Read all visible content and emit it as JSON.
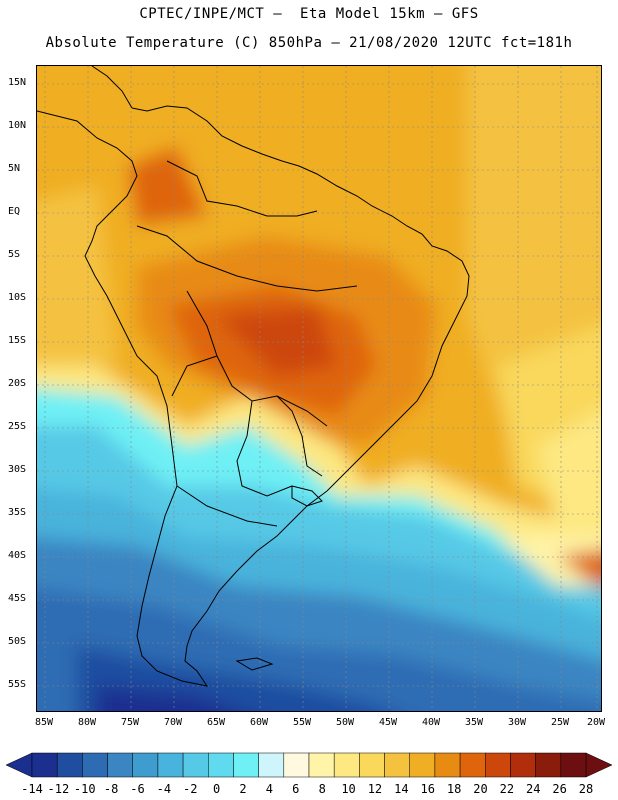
{
  "header": {
    "line1": "CPTEC/INPE/MCT –  Eta Model 15km – GFS",
    "line2": "Absolute Temperature (C) 850hPa – 21/08/2020 12UTC fct=181h"
  },
  "map": {
    "region": "South America",
    "variable": "Absolute Temperature at 850hPa",
    "latitude_labels": [
      "15N",
      "10N",
      "5N",
      "EQ",
      "5S",
      "10S",
      "15S",
      "20S",
      "25S",
      "30S",
      "35S",
      "40S",
      "45S",
      "50S",
      "55S"
    ],
    "longitude_labels": [
      "85W",
      "80W",
      "75W",
      "70W",
      "65W",
      "60W",
      "55W",
      "50W",
      "45W",
      "40W",
      "35W",
      "30W",
      "25W",
      "20W"
    ]
  },
  "colorbar": {
    "labels": [
      "-14",
      "-12",
      "-10",
      "-8",
      "-6",
      "-4",
      "-2",
      "0",
      "2",
      "4",
      "6",
      "8",
      "10",
      "12",
      "14",
      "16",
      "18",
      "20",
      "22",
      "24",
      "26",
      "28"
    ],
    "colors": [
      "#1b2f8f",
      "#1f4ea0",
      "#2d6cb3",
      "#3a85c2",
      "#3f9ccf",
      "#48b3dc",
      "#56c9e6",
      "#5fdaee",
      "#6ef0f5",
      "#cdf5fb",
      "#fff9e0",
      "#fff4a8",
      "#fde882",
      "#f9d85c",
      "#f4c23f",
      "#f0ae24",
      "#e88b12",
      "#df650c",
      "#cc470b",
      "#b02e0b",
      "#8a1c0b",
      "#6d0f10"
    ]
  }
}
